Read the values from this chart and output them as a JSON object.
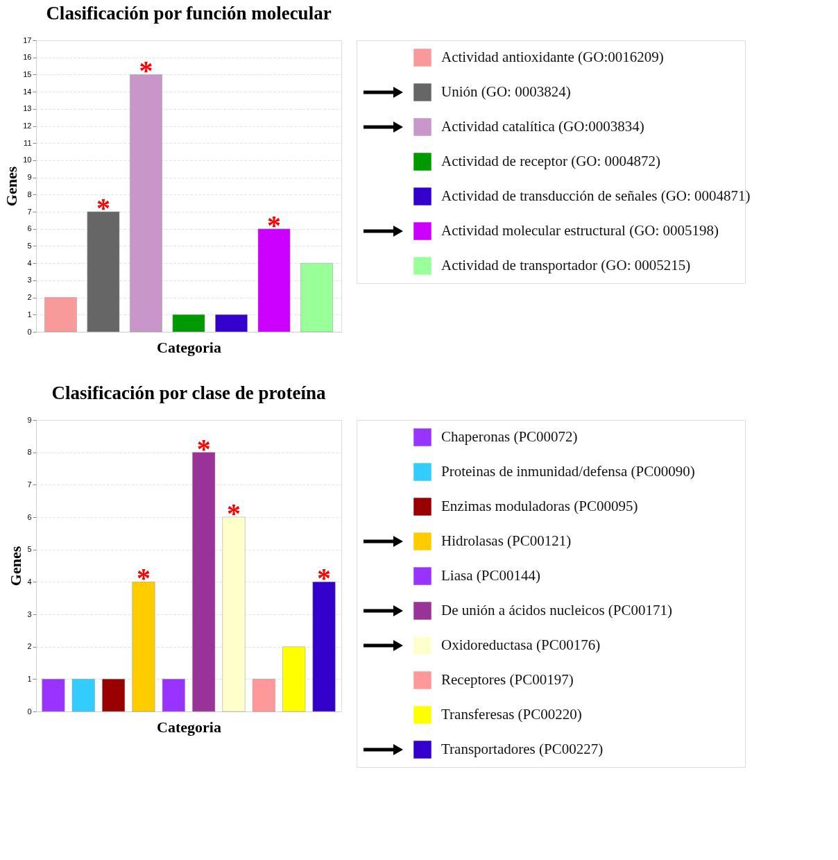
{
  "chart_data": [
    {
      "type": "bar",
      "title": "Clasificación por función molecular",
      "xlabel": "Categoria",
      "ylabel": "Genes",
      "categories": [
        null,
        null,
        null,
        null,
        null,
        null,
        null
      ],
      "series": [
        {
          "name": "Actividad antioxidante (GO:0016209)",
          "color": "#f99a9a",
          "values": [
            2,
            null,
            null,
            null,
            null,
            null,
            null
          ]
        },
        {
          "name": "Unión (GO: 0003824)",
          "color": "#666666",
          "values": [
            null,
            7,
            null,
            null,
            null,
            null,
            null
          ]
        },
        {
          "name": "Actividad catalítica (GO:0003834)",
          "color": "#c896c8",
          "values": [
            null,
            null,
            15,
            null,
            null,
            null,
            null
          ]
        },
        {
          "name": "Actividad de receptor (GO: 0004872)",
          "color": "#009900",
          "values": [
            null,
            null,
            null,
            1,
            null,
            null,
            null
          ]
        },
        {
          "name": "Actividad de transducción de señales (GO: 0004871)",
          "color": "#3300cc",
          "values": [
            null,
            null,
            null,
            null,
            1,
            null,
            null
          ]
        },
        {
          "name": "Actividad molecular estructural (GO: 0005198)",
          "color": "#cc00ff",
          "values": [
            null,
            null,
            null,
            null,
            null,
            6,
            null
          ]
        },
        {
          "name": "Actividad de transportador (GO: 0005215)",
          "color": "#99ff99",
          "values": [
            null,
            null,
            null,
            null,
            null,
            null,
            4
          ]
        }
      ],
      "ylim": [
        0,
        17
      ],
      "yticks": [
        0,
        1,
        2,
        3,
        4,
        5,
        6,
        7,
        8,
        9,
        10,
        11,
        12,
        13,
        14,
        15,
        16,
        17
      ],
      "grid": "y",
      "legend": "right",
      "tick_labels": "y",
      "annotations": [
        {
          "text": "*",
          "y": 7
        },
        {
          "text": "*",
          "y": 15
        },
        {
          "text": "*",
          "y": 6
        }
      ]
    },
    {
      "type": "bar",
      "title": "Clasificación por clase de proteína",
      "xlabel": "Categoria",
      "ylabel": "Genes",
      "categories": [
        null,
        null,
        null,
        null,
        null,
        null,
        null,
        null,
        null,
        null
      ],
      "series": [
        {
          "name": "Chaperonas (PC00072)",
          "color": "#9933ff",
          "values": [
            1,
            null,
            null,
            null,
            null,
            null,
            null,
            null,
            null,
            null
          ]
        },
        {
          "name": "Proteinas de inmunidad/defensa (PC00090)",
          "color": "#33ccff",
          "values": [
            null,
            1,
            null,
            null,
            null,
            null,
            null,
            null,
            null,
            null
          ]
        },
        {
          "name": "Enzimas moduladoras (PC00095)",
          "color": "#990000",
          "values": [
            null,
            null,
            1,
            null,
            null,
            null,
            null,
            null,
            null,
            null
          ]
        },
        {
          "name": "Hidrolasas (PC00121)",
          "color": "#ffcc00",
          "values": [
            null,
            null,
            null,
            4,
            null,
            null,
            null,
            null,
            null,
            null
          ]
        },
        {
          "name": "Liasa (PC00144)",
          "color": "#9933ff",
          "values": [
            null,
            null,
            null,
            null,
            1,
            null,
            null,
            null,
            null,
            null
          ]
        },
        {
          "name": "De unión a ácidos nucleicos (PC00171)",
          "color": "#993399",
          "values": [
            null,
            null,
            null,
            null,
            null,
            8,
            null,
            null,
            null,
            null
          ]
        },
        {
          "name": "Oxidoreductasa (PC00176)",
          "color": "#ffffcc",
          "values": [
            null,
            null,
            null,
            null,
            null,
            null,
            6,
            null,
            null,
            null
          ]
        },
        {
          "name": "Receptores (PC00197)",
          "color": "#ff9999",
          "values": [
            null,
            null,
            null,
            null,
            null,
            null,
            null,
            1,
            null,
            null
          ]
        },
        {
          "name": "Transferesas (PC00220)",
          "color": "#ffff00",
          "values": [
            null,
            null,
            null,
            null,
            null,
            null,
            null,
            null,
            2,
            null
          ]
        },
        {
          "name": "Transportadores (PC00227)",
          "color": "#3300cc",
          "values": [
            null,
            null,
            null,
            null,
            null,
            null,
            null,
            null,
            null,
            4
          ]
        }
      ],
      "ylim": [
        0,
        9
      ],
      "yticks": [
        0,
        1,
        2,
        3,
        4,
        5,
        6,
        7,
        8,
        9
      ],
      "grid": "y",
      "legend": "right",
      "tick_labels": "y",
      "annotations": [
        {
          "text": "*",
          "y": 4
        },
        {
          "text": "*",
          "y": 8
        },
        {
          "text": "*",
          "y": 6
        },
        {
          "text": "*",
          "y": 4
        }
      ]
    }
  ]
}
